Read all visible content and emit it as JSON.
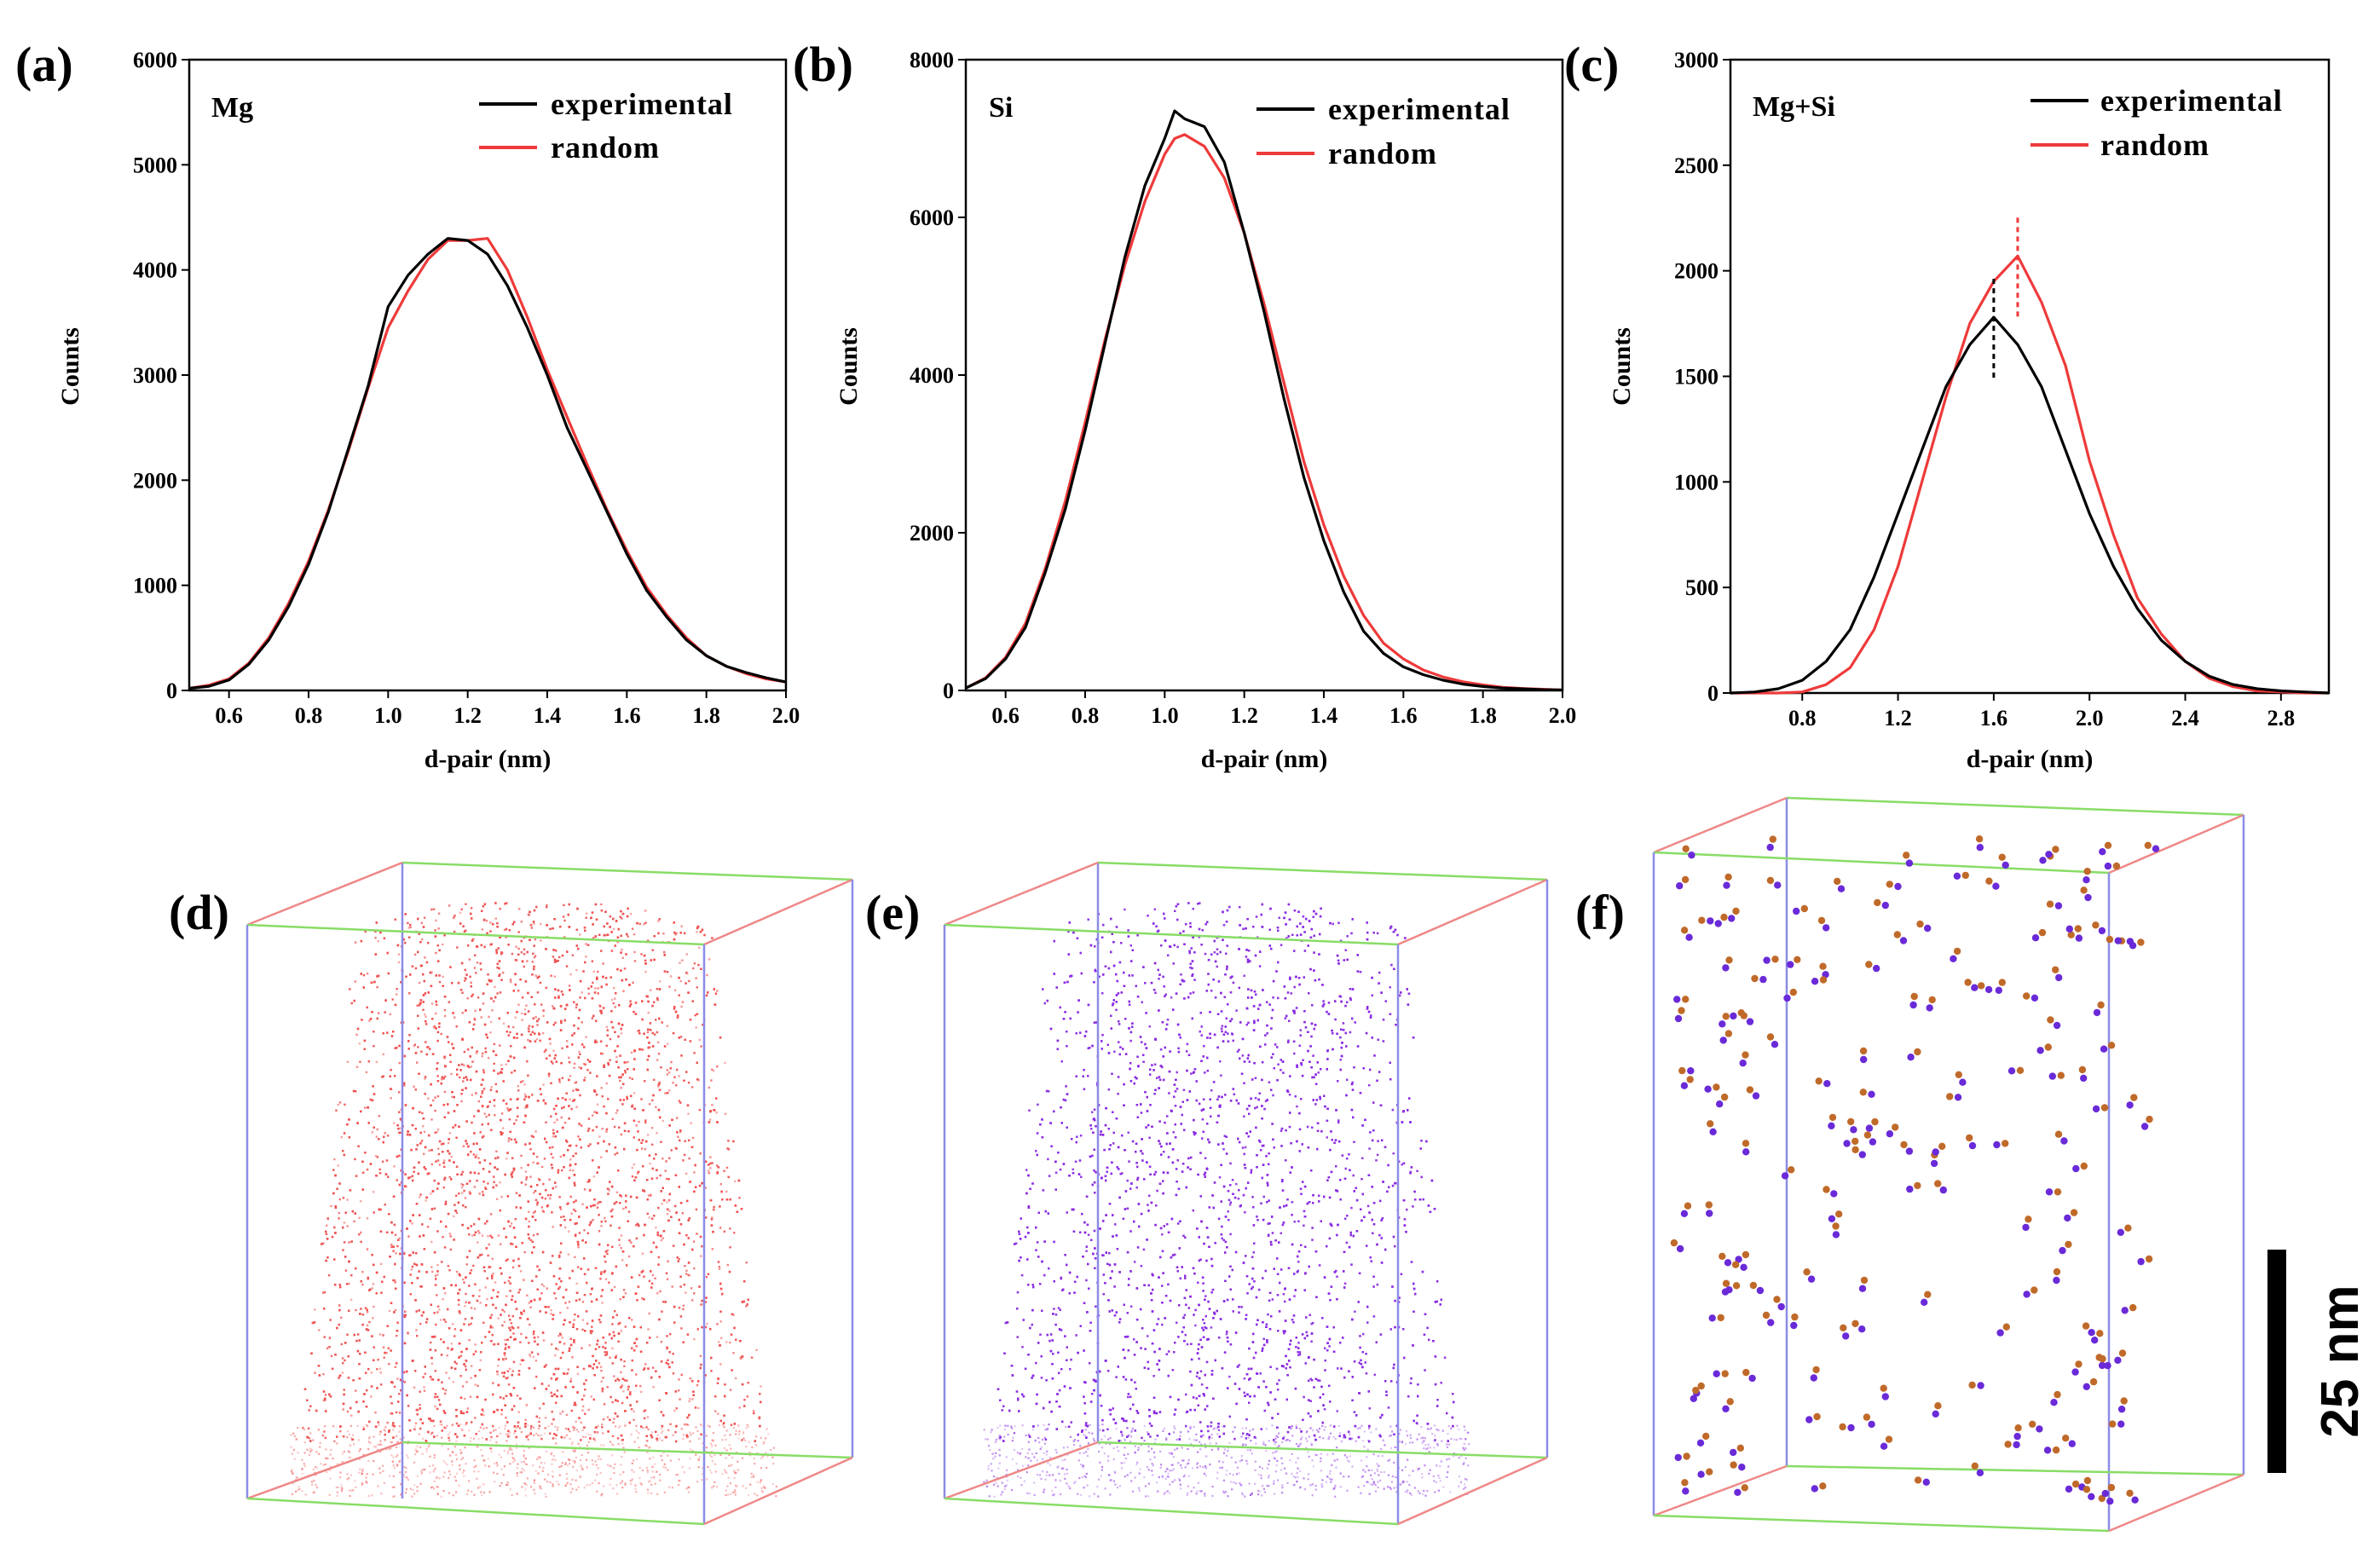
{
  "colors": {
    "experimental": "#000000",
    "random": "#ee3a3a",
    "box_x": "#ee8888",
    "box_y": "#88dd66",
    "box_z": "#8c8ce6",
    "mg_cloud": "#f05050",
    "si_cloud": "#8a2be2",
    "cluster_mg": "#c06a2a",
    "cluster_si": "#6a2ad8"
  },
  "chart_data": [
    {
      "type": "line",
      "panel_label": "(a)",
      "title": "Mg",
      "xlabel": "d-pair (nm)",
      "ylabel": "Counts",
      "xlim": [
        0.5,
        2.0
      ],
      "ylim": [
        0,
        6000
      ],
      "xticks": [
        0.6,
        0.8,
        1.0,
        1.2,
        1.4,
        1.6,
        1.8,
        2.0
      ],
      "xtick_labels": [
        "0.6",
        "0.8",
        "1.0",
        "1.2",
        "1.4",
        "1.6",
        "1.8",
        "2.0"
      ],
      "yticks": [
        0,
        1000,
        2000,
        3000,
        4000,
        5000,
        6000
      ],
      "ytick_labels": [
        "0",
        "1000",
        "2000",
        "3000",
        "4000",
        "5000",
        "6000"
      ],
      "legend_position": "top-right",
      "series": [
        {
          "name": "experimental",
          "x": [
            0.5,
            0.55,
            0.6,
            0.65,
            0.7,
            0.75,
            0.8,
            0.85,
            0.9,
            0.95,
            1.0,
            1.05,
            1.1,
            1.15,
            1.2,
            1.25,
            1.3,
            1.35,
            1.4,
            1.45,
            1.5,
            1.55,
            1.6,
            1.65,
            1.7,
            1.75,
            1.8,
            1.85,
            1.9,
            1.95,
            2.0
          ],
          "y": [
            20,
            40,
            100,
            250,
            480,
            800,
            1200,
            1700,
            2300,
            2900,
            3650,
            3950,
            4150,
            4300,
            4280,
            4150,
            3850,
            3450,
            3000,
            2500,
            2100,
            1700,
            1300,
            950,
            700,
            480,
            330,
            230,
            170,
            120,
            80
          ]
        },
        {
          "name": "random",
          "x": [
            0.5,
            0.55,
            0.6,
            0.65,
            0.7,
            0.75,
            0.8,
            0.85,
            0.9,
            0.95,
            1.0,
            1.05,
            1.1,
            1.15,
            1.2,
            1.25,
            1.3,
            1.35,
            1.4,
            1.45,
            1.5,
            1.55,
            1.6,
            1.65,
            1.7,
            1.75,
            1.8,
            1.85,
            1.9,
            1.95,
            2.0
          ],
          "y": [
            20,
            50,
            110,
            260,
            500,
            830,
            1230,
            1720,
            2280,
            2880,
            3450,
            3800,
            4100,
            4280,
            4280,
            4300,
            4000,
            3550,
            3050,
            2600,
            2150,
            1720,
            1330,
            980,
            720,
            500,
            330,
            230,
            160,
            110,
            80
          ]
        }
      ]
    },
    {
      "type": "line",
      "panel_label": "(b)",
      "title": "Si",
      "xlabel": "d-pair (nm)",
      "ylabel": "Counts",
      "xlim": [
        0.5,
        2.0
      ],
      "ylim": [
        0,
        8000
      ],
      "xticks": [
        0.6,
        0.8,
        1.0,
        1.2,
        1.4,
        1.6,
        1.8,
        2.0
      ],
      "xtick_labels": [
        "0.6",
        "0.8",
        "1.0",
        "1.2",
        "1.4",
        "1.6",
        "1.8",
        "2.0"
      ],
      "yticks": [
        0,
        2000,
        4000,
        6000,
        8000
      ],
      "ytick_labels": [
        "0",
        "2000",
        "4000",
        "6000",
        "8000"
      ],
      "legend_position": "top-right",
      "series": [
        {
          "name": "experimental",
          "x": [
            0.5,
            0.55,
            0.6,
            0.65,
            0.7,
            0.75,
            0.8,
            0.85,
            0.9,
            0.95,
            1.0,
            1.025,
            1.05,
            1.1,
            1.15,
            1.2,
            1.25,
            1.3,
            1.35,
            1.4,
            1.45,
            1.5,
            1.55,
            1.6,
            1.65,
            1.7,
            1.75,
            1.8,
            1.85,
            1.9,
            1.95,
            2.0
          ],
          "y": [
            30,
            150,
            400,
            800,
            1500,
            2300,
            3300,
            4400,
            5500,
            6400,
            7000,
            7350,
            7250,
            7150,
            6700,
            5800,
            4800,
            3700,
            2700,
            1900,
            1250,
            750,
            470,
            300,
            200,
            130,
            80,
            50,
            30,
            20,
            10,
            5
          ]
        },
        {
          "name": "random",
          "x": [
            0.5,
            0.55,
            0.6,
            0.65,
            0.7,
            0.75,
            0.8,
            0.85,
            0.9,
            0.95,
            1.0,
            1.025,
            1.05,
            1.1,
            1.15,
            1.2,
            1.25,
            1.3,
            1.35,
            1.4,
            1.45,
            1.5,
            1.55,
            1.6,
            1.65,
            1.7,
            1.75,
            1.8,
            1.85,
            1.9,
            1.95,
            2.0
          ],
          "y": [
            30,
            160,
            420,
            850,
            1550,
            2400,
            3400,
            4450,
            5400,
            6200,
            6800,
            7000,
            7050,
            6900,
            6500,
            5800,
            4900,
            3900,
            2900,
            2100,
            1450,
            950,
            600,
            400,
            260,
            170,
            110,
            70,
            40,
            25,
            15,
            5
          ]
        }
      ]
    },
    {
      "type": "line",
      "panel_label": "(c)",
      "title": "Mg+Si",
      "xlabel": "d-pair (nm)",
      "ylabel": "Counts",
      "xlim": [
        0.5,
        3.0
      ],
      "ylim": [
        0,
        3000
      ],
      "xticks": [
        0.8,
        1.2,
        1.6,
        2.0,
        2.4,
        2.8
      ],
      "xtick_labels": [
        "0.8",
        "1.2",
        "1.6",
        "2.0",
        "2.4",
        "2.8"
      ],
      "yticks": [
        0,
        500,
        1000,
        1500,
        2000,
        2500,
        3000
      ],
      "ytick_labels": [
        "0",
        "500",
        "1000",
        "1500",
        "2000",
        "2500",
        "3000"
      ],
      "legend_position": "top-right",
      "peak_markers": [
        {
          "series": "experimental",
          "x": 1.6
        },
        {
          "series": "random",
          "x": 1.7
        }
      ],
      "series": [
        {
          "name": "experimental",
          "x": [
            0.5,
            0.6,
            0.7,
            0.8,
            0.9,
            1.0,
            1.1,
            1.2,
            1.3,
            1.4,
            1.5,
            1.6,
            1.7,
            1.8,
            1.9,
            2.0,
            2.1,
            2.2,
            2.3,
            2.4,
            2.5,
            2.6,
            2.7,
            2.8,
            2.9,
            3.0
          ],
          "y": [
            0,
            5,
            20,
            60,
            150,
            300,
            550,
            850,
            1150,
            1450,
            1650,
            1780,
            1650,
            1450,
            1150,
            850,
            600,
            400,
            250,
            150,
            80,
            40,
            20,
            10,
            5,
            0
          ]
        },
        {
          "name": "random",
          "x": [
            0.5,
            0.6,
            0.7,
            0.8,
            0.9,
            1.0,
            1.1,
            1.2,
            1.3,
            1.4,
            1.5,
            1.6,
            1.7,
            1.8,
            1.9,
            2.0,
            2.1,
            2.2,
            2.3,
            2.4,
            2.5,
            2.6,
            2.7,
            2.8,
            2.9,
            3.0
          ],
          "y": [
            0,
            0,
            0,
            5,
            40,
            120,
            300,
            600,
            1000,
            1400,
            1750,
            1950,
            2070,
            1850,
            1550,
            1100,
            750,
            450,
            280,
            150,
            70,
            30,
            10,
            5,
            0,
            0
          ]
        }
      ]
    }
  ],
  "reconstructions": [
    {
      "panel_label": "(d)",
      "element": "Mg"
    },
    {
      "panel_label": "(e)",
      "element": "Si"
    },
    {
      "panel_label": "(f)",
      "element": "Mg+Si clusters"
    }
  ],
  "scale_bar": {
    "label": "25 nm"
  }
}
